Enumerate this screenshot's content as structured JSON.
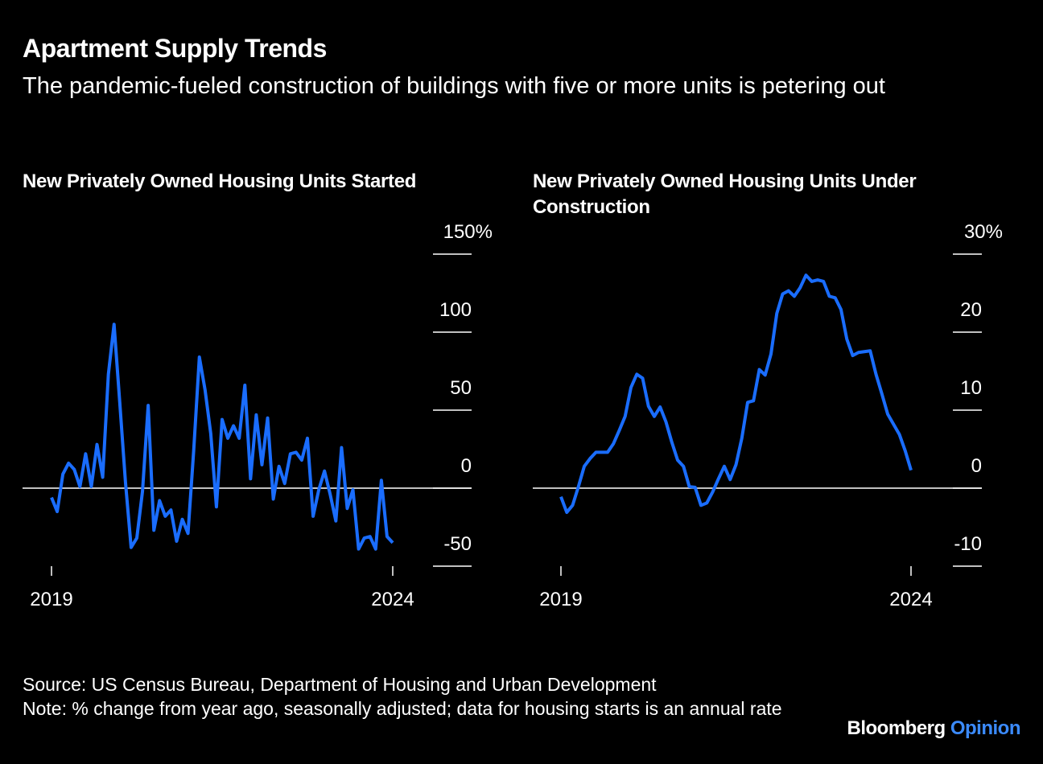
{
  "title": "Apartment Supply Trends",
  "subtitle": "The pandemic-fueled construction of buildings with five or more units is petering out",
  "source": "Source: US Census Bureau, Department of Housing and Urban Development",
  "note": "Note: % change from year ago, seasonally adjusted; data for housing starts is an annual rate",
  "brand": [
    "Bloomberg",
    "Opinion"
  ],
  "chart_data": [
    {
      "type": "line",
      "title": "New Privately Owned Housing Units Started",
      "color": "#1a6dff",
      "categories": [
        "2019",
        null,
        null,
        null,
        null,
        null,
        null,
        null,
        null,
        null,
        null,
        null,
        null,
        null,
        null,
        null,
        null,
        null,
        null,
        null,
        null,
        null,
        null,
        null,
        null,
        null,
        null,
        null,
        null,
        null,
        null,
        null,
        null,
        null,
        null,
        null,
        null,
        null,
        null,
        null,
        null,
        null,
        null,
        null,
        null,
        null,
        null,
        null,
        null,
        null,
        null,
        null,
        null,
        null,
        null,
        null,
        null,
        null,
        null,
        null,
        "2024"
      ],
      "values": [
        -6,
        -15,
        9,
        16,
        12,
        1,
        22,
        1,
        28,
        7,
        73,
        105,
        55,
        4,
        -38,
        -32,
        -2,
        53,
        -27,
        -8,
        -18,
        -14,
        -34,
        -20,
        -29,
        24,
        84,
        63,
        35,
        -12,
        44,
        32,
        40,
        32,
        66,
        6,
        47,
        15,
        45,
        -7,
        14,
        3,
        22,
        23,
        18,
        32,
        -18,
        -1,
        11,
        -4,
        -21,
        26,
        -13,
        -1,
        -39,
        -32,
        -31,
        -39,
        5,
        -31,
        -35
      ],
      "ylim": [
        -50,
        150
      ],
      "yticks": [
        -50,
        0,
        50,
        100,
        {
          "value": 150,
          "label": "150%"
        }
      ]
    },
    {
      "type": "line",
      "title": "New Privately Owned Housing Units Under Construction",
      "color": "#1a6dff",
      "categories": [
        "2019",
        null,
        null,
        null,
        null,
        null,
        null,
        null,
        null,
        null,
        null,
        null,
        null,
        null,
        null,
        null,
        null,
        null,
        null,
        null,
        null,
        null,
        null,
        null,
        null,
        null,
        null,
        null,
        null,
        null,
        null,
        null,
        null,
        null,
        null,
        null,
        null,
        null,
        null,
        null,
        null,
        null,
        null,
        null,
        null,
        null,
        null,
        null,
        null,
        null,
        null,
        null,
        null,
        null,
        null,
        null,
        null,
        null,
        null,
        null,
        "2024"
      ],
      "values": [
        -1.1,
        -3.1,
        -2.2,
        0.2,
        2.8,
        3.8,
        4.6,
        4.6,
        4.6,
        5.7,
        7.4,
        9.2,
        12.9,
        14.6,
        14.1,
        10.5,
        9.2,
        10.4,
        8.5,
        5.9,
        3.6,
        2.8,
        0.2,
        0.1,
        -2.2,
        -1.9,
        -0.5,
        1.2,
        2.8,
        1.1,
        3.0,
        6.4,
        11.0,
        11.2,
        15.2,
        14.5,
        17.2,
        22.4,
        24.9,
        25.3,
        24.6,
        25.7,
        27.3,
        26.5,
        26.7,
        26.5,
        24.6,
        24.4,
        22.9,
        19.1,
        17.0,
        17.4,
        17.5,
        17.6,
        14.6,
        12.1,
        9.5,
        8.2,
        6.9,
        4.8,
        2.3
      ],
      "ylim": [
        -10,
        30
      ],
      "yticks": [
        -10,
        0,
        10,
        20,
        {
          "value": 30,
          "label": "30%"
        }
      ]
    }
  ]
}
